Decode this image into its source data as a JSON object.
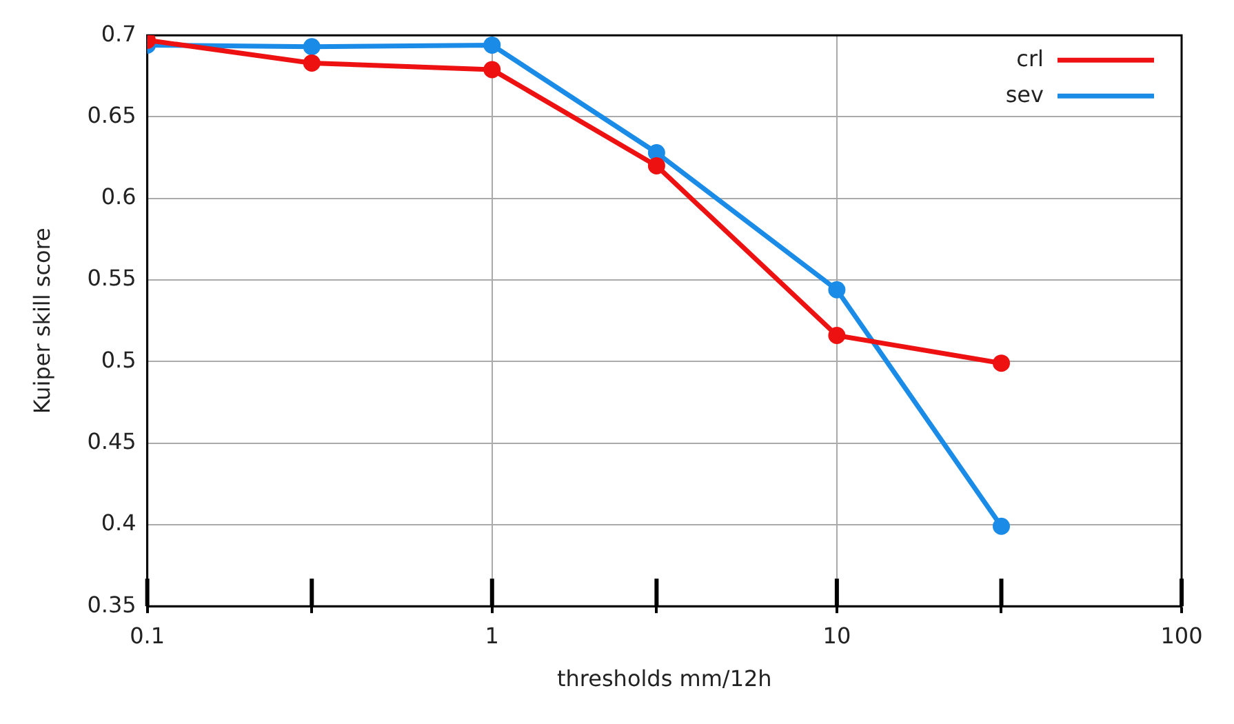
{
  "chart_data": {
    "type": "line",
    "xlabel": "thresholds mm/12h",
    "ylabel": "Kuiper skill score",
    "x": [
      0.1,
      0.3,
      1,
      3,
      10,
      30
    ],
    "series": [
      {
        "name": "crl",
        "color": "#ee1111",
        "values": [
          0.697,
          0.683,
          0.679,
          0.62,
          0.516,
          0.499
        ]
      },
      {
        "name": "sev",
        "color": "#1a8ce8",
        "values": [
          0.694,
          0.693,
          0.694,
          0.628,
          0.544,
          0.399
        ]
      }
    ],
    "xlim": [
      0.1,
      100
    ],
    "xticks": [
      0.1,
      {
        "value": 0.3,
        "label": null
      },
      1,
      {
        "value": 3,
        "label": null
      },
      10,
      {
        "value": 30,
        "label": null
      },
      100
    ],
    "ylim": [
      0.35,
      0.7
    ],
    "yticks": [
      0.35,
      0.4,
      0.45,
      0.5,
      0.55,
      0.6,
      0.65,
      0.7
    ],
    "log": "x",
    "grid": true,
    "legend": "top right",
    "marker": "circle",
    "line_style": "solid"
  }
}
